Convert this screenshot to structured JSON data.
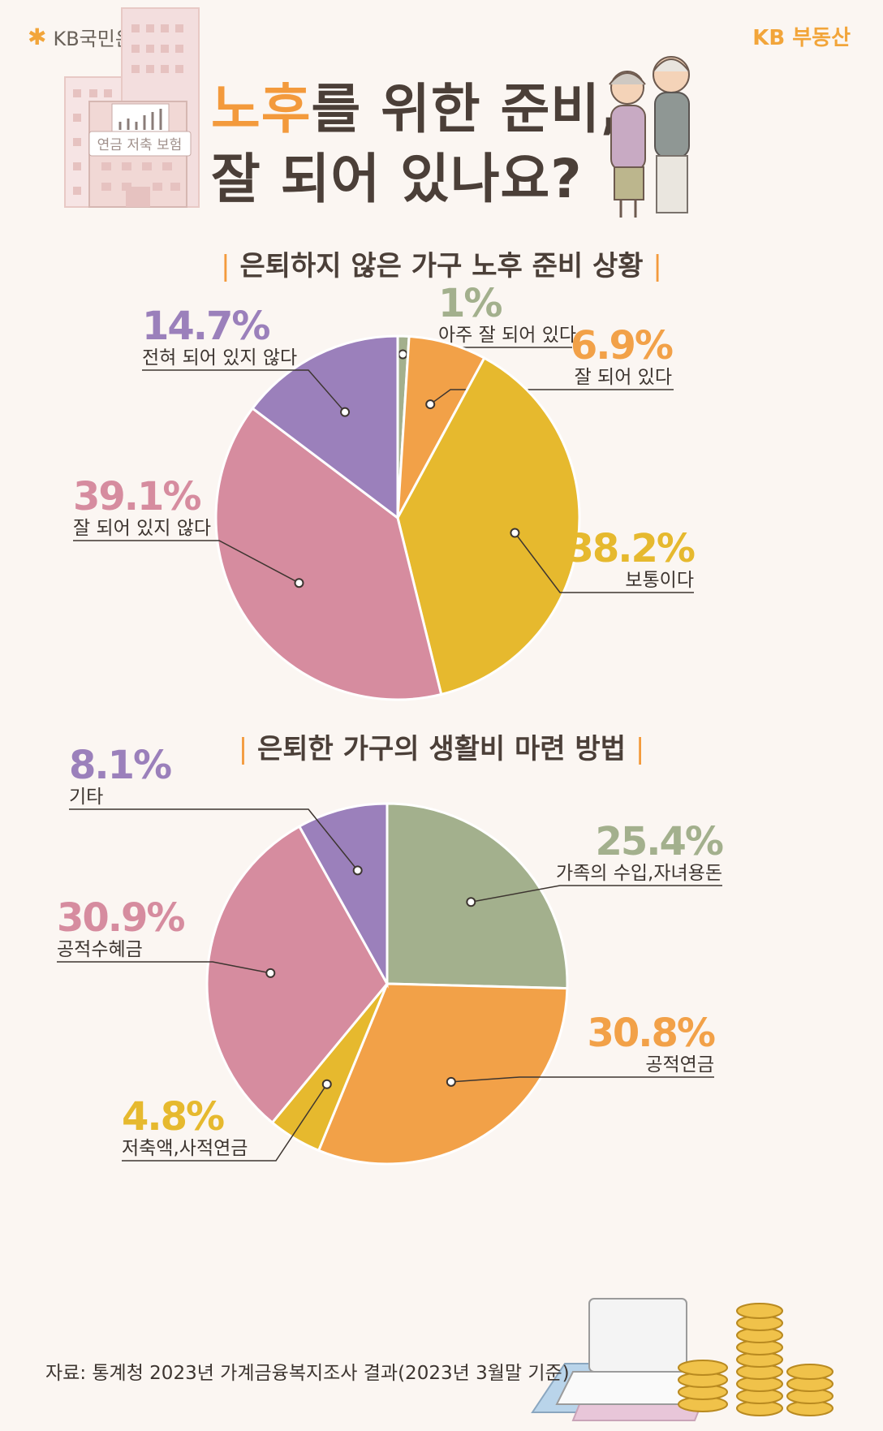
{
  "header": {
    "bank_name": "KB국민은행",
    "brand": "KB 부동산",
    "building_sign": "연금 저축 보험",
    "title_highlight": "노후",
    "title_line1_rest": "를 위한 준비,",
    "title_line2": "잘 되어 있나요?"
  },
  "colors": {
    "accent": "#f39a3c",
    "olive": "#a3b08d",
    "orange": "#f2a148",
    "yellow": "#e6b92e",
    "pink": "#d68c9f",
    "purple": "#9b80bb",
    "sage": "#9aa98a"
  },
  "source": "자료: 통계청 2023년 가계금융복지조사 결과(2023년 3월말 기준)",
  "chart_data": [
    {
      "type": "pie",
      "title": "은퇴하지 않은 가구 노후 준비 상황",
      "categories": [
        "아주 잘 되어 있다",
        "잘 되어 있다",
        "보통이다",
        "잘 되어 있지 않다",
        "전혀 되어 있지 않다"
      ],
      "values": [
        1.0,
        6.9,
        38.2,
        39.1,
        14.7
      ],
      "value_labels": [
        "1%",
        "6.9%",
        "38.2%",
        "39.1%",
        "14.7%"
      ],
      "colors": [
        "#a3b08d",
        "#f2a148",
        "#e6b92e",
        "#d68c9f",
        "#9b80bb"
      ]
    },
    {
      "type": "pie",
      "title": "은퇴한 가구의 생활비 마련 방법",
      "categories": [
        "가족의 수입,자녀용돈",
        "공적연금",
        "저축액,사적연금",
        "공적수혜금",
        "기타"
      ],
      "values": [
        25.4,
        30.8,
        4.8,
        30.9,
        8.1
      ],
      "value_labels": [
        "25.4%",
        "30.8%",
        "4.8%",
        "30.9%",
        "8.1%"
      ],
      "colors": [
        "#a3b08d",
        "#f2a148",
        "#e6b92e",
        "#d68c9f",
        "#9b80bb"
      ]
    }
  ]
}
